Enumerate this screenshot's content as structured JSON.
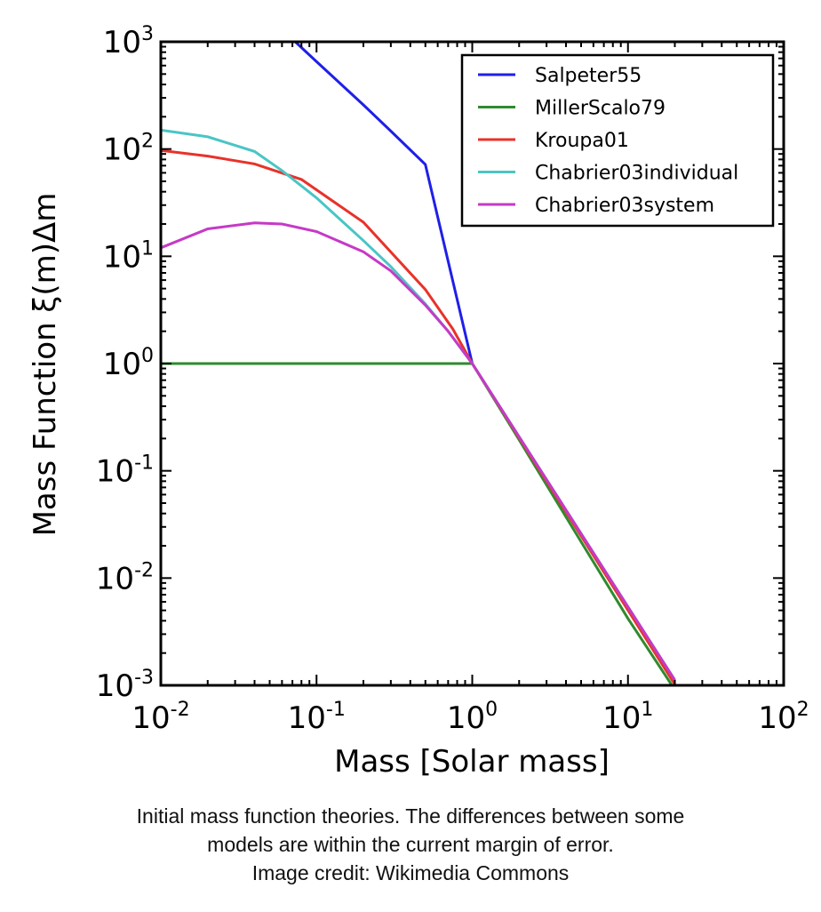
{
  "chart_data": {
    "type": "line",
    "xlabel": "Mass [Solar mass]",
    "ylabel": "Mass Function ξ(m)Δm",
    "xscale": "log",
    "yscale": "log",
    "xlim": [
      0.01,
      100
    ],
    "ylim": [
      0.001,
      1000
    ],
    "x_ticks": [
      {
        "base": "10",
        "exp": "-2",
        "value": 0.01
      },
      {
        "base": "10",
        "exp": "-1",
        "value": 0.1
      },
      {
        "base": "10",
        "exp": "0",
        "value": 1
      },
      {
        "base": "10",
        "exp": "1",
        "value": 10
      },
      {
        "base": "10",
        "exp": "2",
        "value": 100
      }
    ],
    "y_ticks": [
      {
        "base": "10",
        "exp": "3",
        "value": 1000
      },
      {
        "base": "10",
        "exp": "2",
        "value": 100
      },
      {
        "base": "10",
        "exp": "1",
        "value": 10
      },
      {
        "base": "10",
        "exp": "0",
        "value": 1
      },
      {
        "base": "10",
        "exp": "-1",
        "value": 0.1
      },
      {
        "base": "10",
        "exp": "-2",
        "value": 0.01
      },
      {
        "base": "10",
        "exp": "-3",
        "value": 0.001
      }
    ],
    "grid": false,
    "legend_position": "top-right",
    "series": [
      {
        "name": "Salpeter55",
        "color": "#1f1fe8",
        "points": [
          [
            0.073,
            1000
          ],
          [
            0.1,
            652
          ],
          [
            0.2,
            258
          ],
          [
            0.3,
            147
          ],
          [
            0.5,
            71.8
          ],
          [
            1,
            1
          ],
          [
            20,
            0.00109
          ]
        ]
      },
      {
        "name": "MillerScalo79",
        "color": "#2e8b2e",
        "points": [
          [
            0.01,
            1
          ],
          [
            1,
            1
          ],
          [
            2,
            0.194
          ],
          [
            5,
            0.0218
          ],
          [
            10,
            0.00419
          ],
          [
            19,
            0.00102
          ]
        ]
      },
      {
        "name": "Kroupa01",
        "color": "#e8322a",
        "points": [
          [
            0.01,
            97.1
          ],
          [
            0.02,
            86.0
          ],
          [
            0.04,
            72.6
          ],
          [
            0.08,
            52.0
          ],
          [
            0.2,
            20.8
          ],
          [
            0.5,
            4.9
          ],
          [
            0.75,
            2.1
          ],
          [
            1,
            1
          ],
          [
            20,
            0.00102
          ]
        ]
      },
      {
        "name": "Chabrier03individual",
        "color": "#4ac5c5",
        "points": [
          [
            0.01,
            150
          ],
          [
            0.02,
            130
          ],
          [
            0.04,
            95
          ],
          [
            0.06,
            63
          ],
          [
            0.1,
            35
          ],
          [
            0.2,
            14
          ],
          [
            0.3,
            8
          ],
          [
            0.5,
            3.6
          ],
          [
            0.7,
            2.0
          ],
          [
            1,
            1
          ],
          [
            20,
            0.00112
          ]
        ]
      },
      {
        "name": "Chabrier03system",
        "color": "#c639c6",
        "points": [
          [
            0.01,
            12
          ],
          [
            0.02,
            18
          ],
          [
            0.04,
            20.5
          ],
          [
            0.06,
            20
          ],
          [
            0.1,
            17
          ],
          [
            0.2,
            11
          ],
          [
            0.3,
            7.3
          ],
          [
            0.5,
            3.5
          ],
          [
            0.7,
            2.0
          ],
          [
            1,
            1
          ],
          [
            20,
            0.00112
          ]
        ]
      }
    ]
  },
  "caption": {
    "line1": "Initial mass function theories. The differences between some",
    "line2": "models are within the current margin of error.",
    "line3": "Image credit: Wikimedia Commons"
  }
}
